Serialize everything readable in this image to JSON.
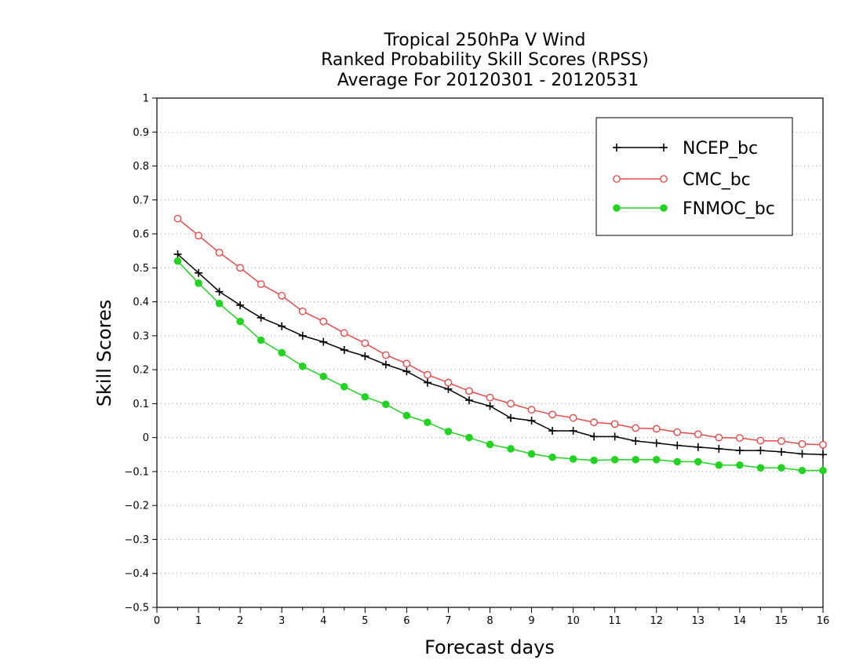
{
  "chart_data": {
    "type": "line",
    "title": [
      "Tropical 250hPa V Wind",
      "Ranked Probability Skill Scores (RPSS)",
      "Average For 20120301 - 20120531"
    ],
    "xlabel": "Forecast days",
    "ylabel": "Skill Scores",
    "xlim": [
      0,
      16
    ],
    "ylim": [
      -0.5,
      1
    ],
    "xticks": [
      0,
      1,
      2,
      3,
      4,
      5,
      6,
      7,
      8,
      9,
      10,
      11,
      12,
      13,
      14,
      15,
      16
    ],
    "yticks": [
      -0.5,
      -0.4,
      -0.3,
      -0.2,
      -0.1,
      0,
      0.1,
      0.2,
      0.3,
      0.4,
      0.5,
      0.6,
      0.7,
      0.8,
      0.9,
      1
    ],
    "ytick_labels": [
      "−0.5",
      "−0.4",
      "−0.3",
      "−0.2",
      "−0.1",
      "0",
      "0.1",
      "0.2",
      "0.3",
      "0.4",
      "0.5",
      "0.6",
      "0.7",
      "0.8",
      "0.9",
      "1"
    ],
    "grid": "horizontal dotted",
    "legend_position": "top-right",
    "x": [
      0.5,
      1,
      1.5,
      2,
      2.5,
      3,
      3.5,
      4,
      4.5,
      5,
      5.5,
      6,
      6.5,
      7,
      7.5,
      8,
      8.5,
      9,
      9.5,
      10,
      10.5,
      11,
      11.5,
      12,
      12.5,
      13,
      13.5,
      14,
      14.5,
      15,
      15.5,
      16
    ],
    "series": [
      {
        "name": "NCEP_bc",
        "color": "#000000",
        "marker": "plus",
        "values": [
          0.54,
          0.485,
          0.43,
          0.39,
          0.353,
          0.328,
          0.3,
          0.282,
          0.258,
          0.24,
          0.215,
          0.195,
          0.162,
          0.143,
          0.11,
          0.093,
          0.058,
          0.05,
          0.02,
          0.02,
          0.003,
          0.003,
          -0.01,
          -0.016,
          -0.023,
          -0.028,
          -0.033,
          -0.038,
          -0.038,
          -0.042,
          -0.048,
          -0.05
        ]
      },
      {
        "name": "CMC_bc",
        "color": "#e84a4a",
        "marker": "open-circle",
        "values": [
          0.645,
          0.595,
          0.545,
          0.5,
          0.452,
          0.418,
          0.372,
          0.342,
          0.308,
          0.278,
          0.243,
          0.218,
          0.185,
          0.162,
          0.137,
          0.118,
          0.1,
          0.082,
          0.068,
          0.058,
          0.045,
          0.04,
          0.028,
          0.026,
          0.016,
          0.01,
          0.0,
          -0.001,
          -0.009,
          -0.01,
          -0.019,
          -0.021
        ]
      },
      {
        "name": "FNMOC_bc",
        "color": "#22d322",
        "marker": "filled-circle",
        "values": [
          0.52,
          0.455,
          0.395,
          0.342,
          0.287,
          0.25,
          0.21,
          0.18,
          0.15,
          0.12,
          0.098,
          0.065,
          0.045,
          0.018,
          0.0,
          -0.02,
          -0.033,
          -0.048,
          -0.058,
          -0.063,
          -0.067,
          -0.065,
          -0.065,
          -0.065,
          -0.071,
          -0.071,
          -0.081,
          -0.081,
          -0.089,
          -0.089,
          -0.097,
          -0.097
        ]
      }
    ]
  }
}
